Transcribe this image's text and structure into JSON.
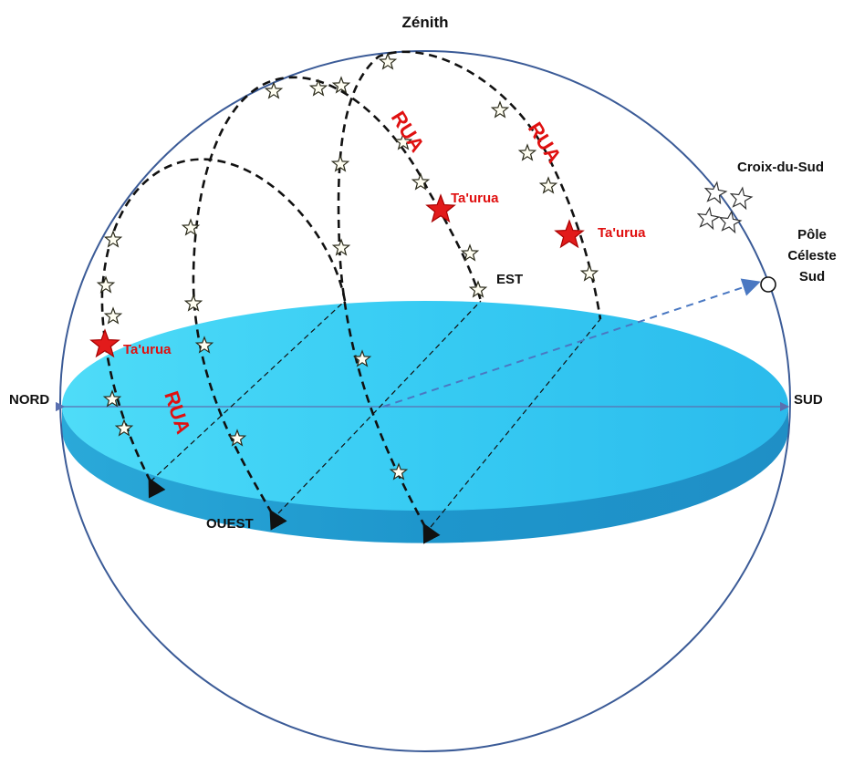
{
  "labels": {
    "zenith": "Zénith",
    "nord": "NORD",
    "sud": "SUD",
    "est": "EST",
    "ouest": "OUEST",
    "croix_du_sud": "Croix-du-Sud",
    "pole_line1": "Pôle",
    "pole_line2": "Céleste",
    "pole_line3": "Sud"
  },
  "rua_labels": [
    "RUA",
    "RUA",
    "RUA"
  ],
  "star_labels": [
    "Ta'urua",
    "Ta'urua",
    "Ta'urua"
  ],
  "colors": {
    "disk_top": "#3fd0f5",
    "disk_edge": "#1b9fd0",
    "sphere_outline": "#3b5b97",
    "path_line": "#111111",
    "pole_arrow": "#4a78c2",
    "highlight_star": "#e21b1b",
    "label_red": "#e01010"
  }
}
